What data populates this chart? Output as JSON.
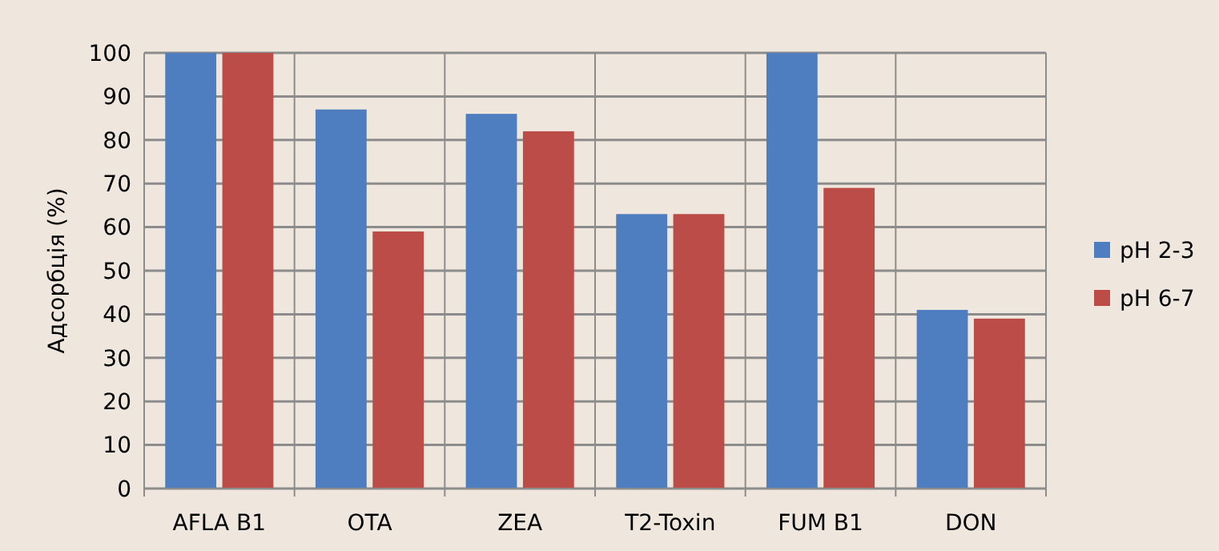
{
  "chart_data": {
    "type": "bar",
    "ylabel": "Адсорбція (%)",
    "categories": [
      "AFLA B1",
      "OTA",
      "ZEA",
      "T2-Toxin",
      "FUM B1",
      "DON"
    ],
    "series": [
      {
        "name": "pH 2-3",
        "color": "#4f7ec0",
        "values": [
          100,
          87,
          86,
          63,
          100,
          41
        ]
      },
      {
        "name": "pH 6-7",
        "color": "#bc4c47",
        "values": [
          100,
          59,
          82,
          63,
          69,
          39
        ]
      }
    ],
    "ylim": [
      0,
      100
    ],
    "yticks": [
      0,
      10,
      20,
      30,
      40,
      50,
      60,
      70,
      80,
      90,
      100
    ],
    "grid": true,
    "legend": "right"
  }
}
